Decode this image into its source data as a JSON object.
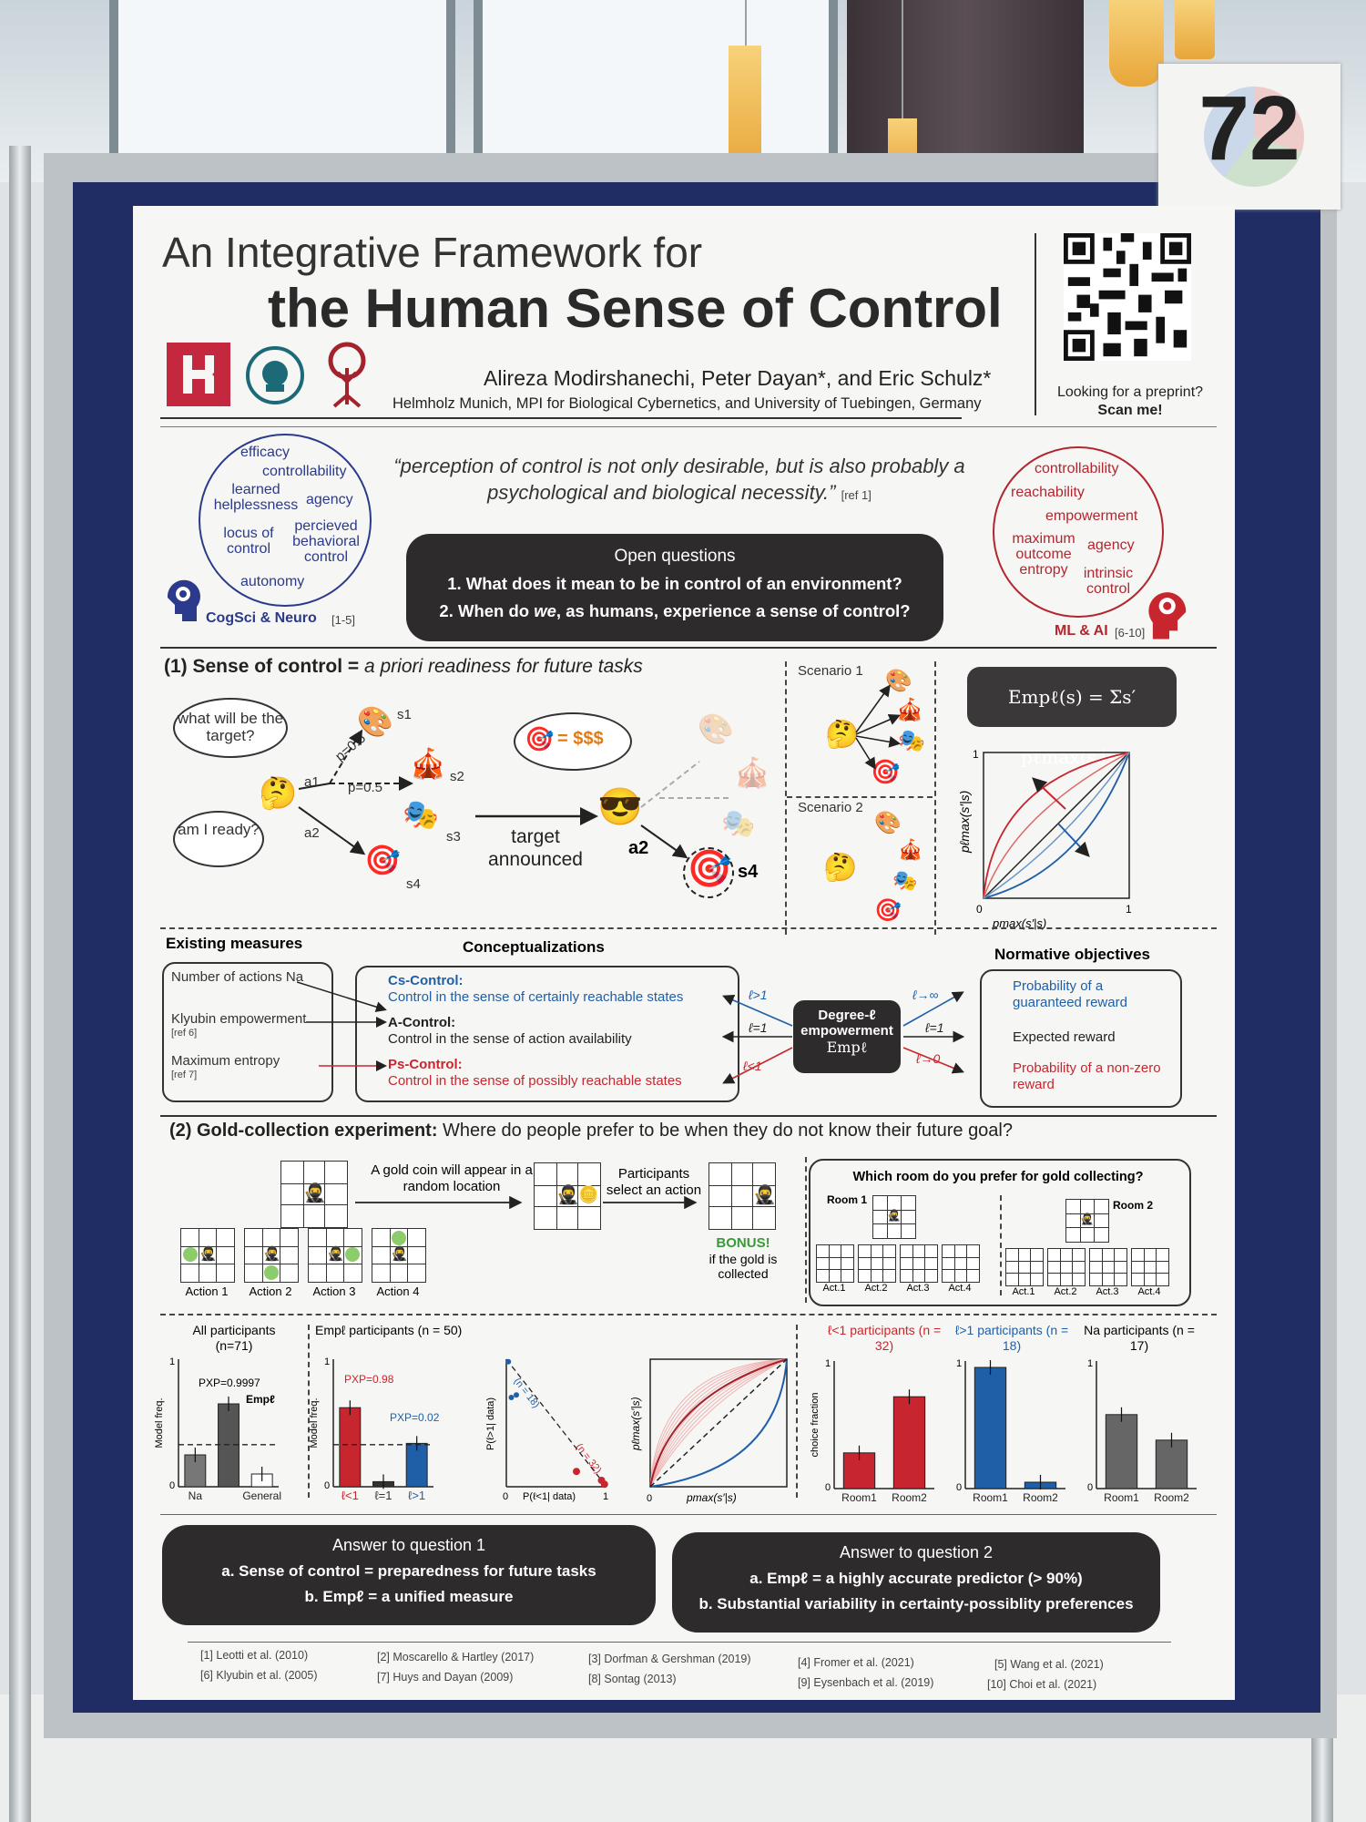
{
  "booth_number": "72",
  "poster": {
    "title_pre": "An Integrative Framework for",
    "title_main": "the Human Sense of Control",
    "authors": "Alireza Modirshanechi, Peter Dayan*, and Eric Schulz*",
    "affiliation": "Helmholz Munich, MPI for Biological Cybernetics, and University of Tuebingen, Germany",
    "qr_caption": "Looking for a preprint?",
    "qr_cta": "Scan me!",
    "quote": "“perception of control is not only desirable, but is also probably a psychological and biological necessity.”",
    "quote_ref": "[ref 1]",
    "cogsci_words": [
      "efficacy",
      "controllability",
      "learned helplessness",
      "agency",
      "locus of control",
      "percieved behavioral control",
      "autonomy"
    ],
    "cogsci_label": "CogSci & Neuro",
    "cogsci_ref": "[1-5]",
    "mlai_words": [
      "controllability",
      "reachability",
      "empowerment",
      "maximum outcome entropy",
      "agency",
      "intrinsic control"
    ],
    "mlai_label": "ML & AI",
    "mlai_ref": "[6-10]",
    "open_questions": {
      "heading": "Open questions",
      "q1": "1. What does it mean to be in control of an environment?",
      "q2_a": "2. When do ",
      "q2_we": "we",
      "q2_b": ", as humans, experience a sense of control?"
    },
    "section1": {
      "heading_bold": "(1) Sense of control = ",
      "heading_rest": "a priori readiness for future tasks",
      "cloud1": "what will be the target?",
      "cloud2": "am I ready?",
      "p1": "p=0.5",
      "p2": "p=0.5",
      "a1": "a1",
      "a2": "a2",
      "s1": "s1",
      "s2": "s2",
      "s3": "s3",
      "s4": "s4",
      "target_announced": "target announced",
      "money": "= $$$",
      "a2_bold": "a2",
      "s4_bold": "s4",
      "scenario1": "Scenario 1",
      "scenario2": "Scenario 2",
      "formula": "Empℓ(s) = Σs′ pℓmax(s′|s)"
    },
    "measures": {
      "existing_heading": "Existing measures",
      "concept_heading": "Conceptualizations",
      "normative_heading": "Normative objectives",
      "existing": [
        "Number of actions Na",
        "Klyubin empowerment",
        "[ref 6]",
        "Maximum entropy",
        "[ref 7]"
      ],
      "cs_title": "Cs-Control:",
      "cs_desc": "Control in the sense of certainly reachable states",
      "a_title": "A-Control:",
      "a_desc": "Control in the sense of action availability",
      "ps_title": "Ps-Control:",
      "ps_desc": "Control in the sense of possibly reachable states",
      "degree_box": [
        "Degree-ℓ",
        "empowerment",
        "Empℓ"
      ],
      "l_gt1": "ℓ>1",
      "l_eq1": "ℓ=1",
      "l_lt1": "ℓ<1",
      "l_inf": "ℓ→∞",
      "l_zero": "ℓ→0",
      "norm1": "Probability of a guaranteed reward",
      "norm2": "Expected reward",
      "norm3": "Probability of a non-zero reward"
    },
    "section2": {
      "heading_bold": "(2) Gold-collection experiment:",
      "heading_rest": " Where do people prefer to be when they do not know their future goal?",
      "coin_text": "A gold coin will appear in a random location",
      "select_text": "Participants select an action",
      "bonus": "BONUS!",
      "bonus_sub": "if the gold is collected",
      "actions": [
        "Action 1",
        "Action 2",
        "Action 3",
        "Action 4"
      ],
      "room_q": "Which room do you prefer for gold collecting?",
      "room1": "Room 1",
      "room2": "Room 2",
      "acts": [
        "Act.1",
        "Act.2",
        "Act.3",
        "Act.4"
      ]
    },
    "results": {
      "all_title": "All participants (n=71)",
      "emp_title": "Empℓ participants (n = 50)",
      "lt1_title": "ℓ<1 participants (n = 32)",
      "gt1_title": "ℓ>1 participants (n = 18)",
      "na_title": "Na participants (n = 17)",
      "pxp1": "PXP=0.9997",
      "pxp2": "PXP=0.98",
      "pxp3": "PXP=0.02",
      "model_freq": "Model freq.",
      "choice_fraction": "choice fraction",
      "emp_label": "Empℓ",
      "cat_all": [
        "Na",
        "General"
      ],
      "cat_emp": [
        "ℓ<1",
        "ℓ=1",
        "ℓ>1"
      ],
      "room_cats": [
        "Room1",
        "Room2"
      ],
      "scatter_ylabel": "P(ℓ>1| data)",
      "scatter_xlabel": "P(ℓ<1| data)",
      "scatter_n18": "(n = 18)",
      "scatter_n32": "(n = 32)",
      "curve_ylabel": "pℓmax(s′|s)",
      "curve_xlabel": "pmax(s′|s)",
      "tick0": "0",
      "tick1": "1"
    },
    "answers": {
      "a1_heading": "Answer to question 1",
      "a1_a": "a. Sense of control = preparedness for future tasks",
      "a1_b": "b. Empℓ = a unified measure",
      "a2_heading": "Answer to question 2",
      "a2_a": "a. Empℓ = a highly accurate predictor (> 90%)",
      "a2_b": "b. Substantial variability in certainty-possiblity preferences"
    },
    "references": [
      "[1] Leotti et al. (2010)",
      "[2] Moscarello & Hartley (2017)",
      "[3] Dorfman & Gershman (2019)",
      "[4] Fromer et al. (2021)",
      "[5] Wang et al. (2021)",
      "[6] Klyubin et al. (2005)",
      "[7] Huys and Dayan (2009)",
      "[8] Sontag (2013)",
      "[9] Eysenbach et al. (2019)",
      "[10] Choi et al. (2021)"
    ]
  },
  "chart_data": [
    {
      "type": "bar",
      "title": "All participants (n=71)",
      "ylabel": "Model freq.",
      "categories": [
        "Na",
        "Empℓ",
        "General"
      ],
      "values": [
        0.25,
        0.65,
        0.1
      ],
      "ylim": [
        0,
        1
      ],
      "annotation": "PXP=0.9997"
    },
    {
      "type": "bar",
      "title": "Empℓ participants (n = 50)",
      "ylabel": "Model freq.",
      "categories": [
        "ℓ<1",
        "ℓ=1",
        "ℓ>1"
      ],
      "values": [
        0.62,
        0.04,
        0.34
      ],
      "ylim": [
        0,
        1
      ],
      "annotations": [
        "PXP=0.98",
        "PXP=0.02"
      ],
      "colors": [
        "#c8262e",
        "#333333",
        "#1f5fa8"
      ]
    },
    {
      "type": "bar",
      "title": "ℓ<1 participants (n = 32)",
      "ylabel": "choice fraction",
      "categories": [
        "Room1",
        "Room2"
      ],
      "values": [
        0.28,
        0.72
      ],
      "ylim": [
        0,
        1
      ]
    },
    {
      "type": "bar",
      "title": "ℓ>1 participants (n = 18)",
      "categories": [
        "Room1",
        "Room2"
      ],
      "values": [
        0.95,
        0.05
      ],
      "ylim": [
        0,
        1
      ]
    },
    {
      "type": "bar",
      "title": "Na participants (n = 17)",
      "categories": [
        "Room1",
        "Room2"
      ],
      "values": [
        0.58,
        0.38
      ],
      "ylim": [
        0,
        1
      ]
    }
  ]
}
